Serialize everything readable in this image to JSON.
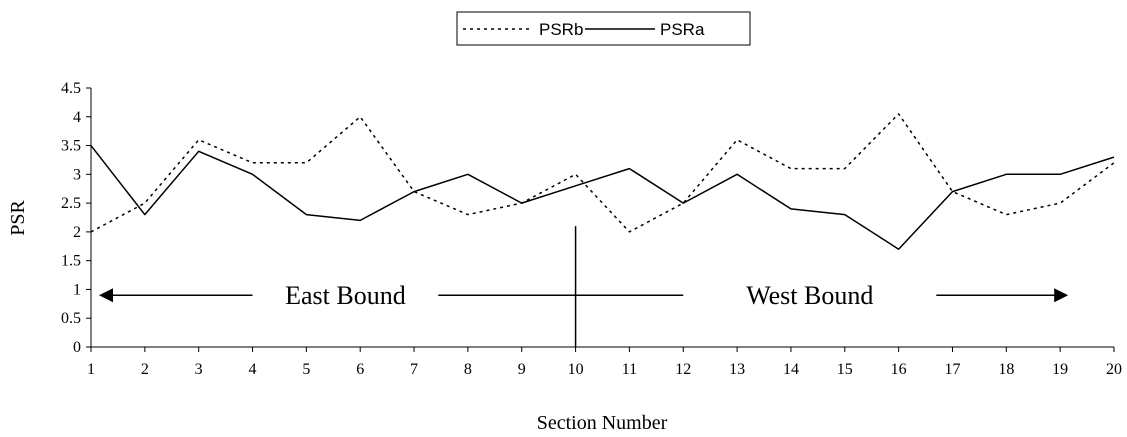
{
  "chart_data": {
    "type": "line",
    "title": "",
    "xlabel": "Section Number",
    "ylabel": "PSR",
    "x": [
      1,
      2,
      3,
      4,
      5,
      6,
      7,
      8,
      9,
      10,
      11,
      12,
      13,
      14,
      15,
      16,
      17,
      18,
      19,
      20
    ],
    "x_tick_labels": [
      "1",
      "2",
      "3",
      "4",
      "5",
      "6",
      "7",
      "8",
      "9",
      "10",
      "11",
      "12",
      "13",
      "14",
      "15",
      "16",
      "17",
      "18",
      "19",
      "20"
    ],
    "ylim": [
      0,
      4.5
    ],
    "y_tick_labels": [
      "0",
      "0.5",
      "1",
      "1.5",
      "2",
      "2.5",
      "3",
      "3.5",
      "4",
      "4.5"
    ],
    "grid": false,
    "legend_position": "top-center",
    "series": [
      {
        "name": "PSRb",
        "line_style": "dotted",
        "color": "#000000",
        "values": [
          2.0,
          2.5,
          3.6,
          3.2,
          3.2,
          4.0,
          2.7,
          2.3,
          2.5,
          3.0,
          2.0,
          2.5,
          3.6,
          3.1,
          3.1,
          4.05,
          2.7,
          2.3,
          2.5,
          3.2
        ]
      },
      {
        "name": "PSRa",
        "line_style": "solid",
        "color": "#000000",
        "values": [
          3.5,
          2.3,
          3.4,
          3.0,
          2.3,
          2.2,
          2.7,
          3.0,
          2.5,
          2.8,
          3.1,
          2.5,
          3.0,
          2.4,
          2.3,
          1.7,
          2.7,
          3.0,
          3.0,
          3.3
        ]
      }
    ],
    "annotations": {
      "east": {
        "text": "East Bound",
        "y": 0.9,
        "arrow_from_x": 1,
        "arrow_to_x": 4.0
      },
      "west": {
        "text": "West Bound",
        "y": 0.9,
        "arrow_from_x": 16.7,
        "arrow_to_x": 19.0
      },
      "center_line_from_x": 7.45,
      "center_line_to_x": 12.0,
      "divider": {
        "x": 10,
        "y_from": 0,
        "y_to": 2.1
      }
    }
  }
}
